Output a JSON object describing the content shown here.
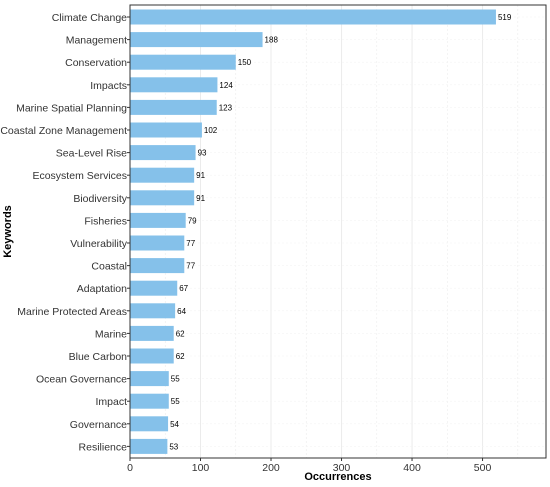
{
  "chart_data": {
    "type": "bar",
    "orientation": "horizontal",
    "categories": [
      "Climate Change",
      "Management",
      "Conservation",
      "Impacts",
      "Marine Spatial Planning",
      "Coastal Zone Management",
      "Sea-Level Rise",
      "Ecosystem Services",
      "Biodiversity",
      "Fisheries",
      "Vulnerability",
      "Coastal",
      "Adaptation",
      "Marine Protected Areas",
      "Marine",
      "Blue Carbon",
      "Ocean Governance",
      "Impact",
      "Governance",
      "Resilience"
    ],
    "values": [
      519,
      188,
      150,
      124,
      123,
      102,
      93,
      91,
      91,
      79,
      77,
      77,
      67,
      64,
      62,
      62,
      55,
      55,
      54,
      53
    ],
    "xlabel": "Occurrences",
    "ylabel": "Keywords",
    "xlim": [
      0,
      590
    ],
    "xticks": [
      0,
      100,
      200,
      300,
      400,
      500
    ],
    "grid": true,
    "legend": "none",
    "bar_color": "#85c1ea",
    "panel_border_color": "#333333",
    "grid_color": "#ebebeb"
  }
}
